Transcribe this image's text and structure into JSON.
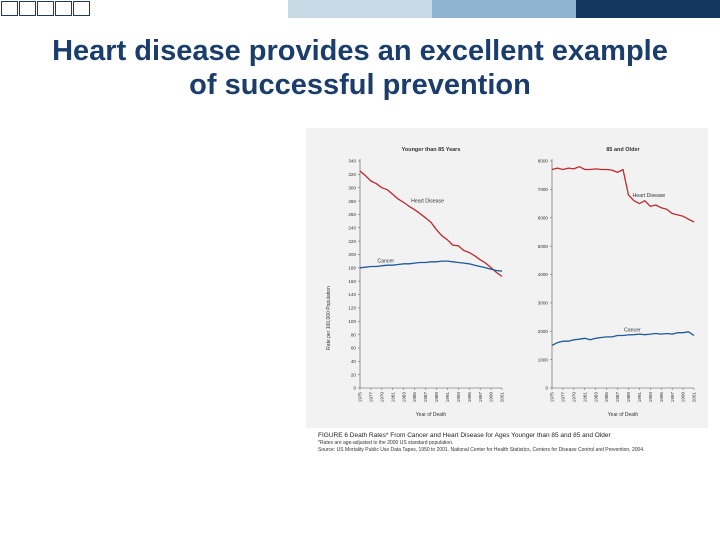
{
  "slide": {
    "title_line1": "Heart disease provides an excellent example",
    "title_line2": "of successful prevention",
    "bar_colors": [
      "#ffffff",
      "#c8d9e6",
      "#8db3d1",
      "#13375f"
    ]
  },
  "figure": {
    "caption_main": "FIGURE 6   Death Rates* From Cancer and Heart Disease for Ages Younger than 85 and 85 and Older",
    "caption_note1": "*Rates are age-adjusted to the 2000 US standard population.",
    "caption_note2": "Source: US Mortality Public Use Data Tapes, 1950 to 2001. National Center for Health Statistics, Centers for Disease Control and Prevention, 2004.",
    "ylabel": "Rate per 100,000 Population"
  },
  "chart_data": [
    {
      "type": "line",
      "title": "Younger than 85 Years",
      "xlabel": "Year of Death",
      "ylabel": "Rate per 100,000 Population",
      "xlim": [
        1975,
        2001
      ],
      "ylim": [
        0,
        340
      ],
      "yticks": [
        0,
        20,
        40,
        60,
        80,
        100,
        120,
        140,
        160,
        180,
        200,
        220,
        240,
        260,
        280,
        300,
        320,
        340
      ],
      "xticks": [
        "1975",
        "1977",
        "1979",
        "1981",
        "1983",
        "1985",
        "1987",
        "1989",
        "1991",
        "1993",
        "1995",
        "1997",
        "1999",
        "2001"
      ],
      "series": [
        {
          "name": "Heart Disease",
          "color": "#c0282d",
          "x": [
            1975,
            1976,
            1977,
            1978,
            1979,
            1980,
            1981,
            1982,
            1983,
            1984,
            1985,
            1986,
            1987,
            1988,
            1989,
            1990,
            1991,
            1992,
            1993,
            1994,
            1995,
            1996,
            1997,
            1998,
            1999,
            2000,
            2001
          ],
          "y": [
            325,
            318,
            310,
            306,
            300,
            297,
            290,
            283,
            278,
            272,
            267,
            261,
            255,
            248,
            237,
            228,
            222,
            214,
            213,
            206,
            203,
            198,
            192,
            187,
            180,
            173,
            167
          ]
        },
        {
          "name": "Cancer",
          "color": "#1f5a99",
          "x": [
            1975,
            1976,
            1977,
            1978,
            1979,
            1980,
            1981,
            1982,
            1983,
            1984,
            1985,
            1986,
            1987,
            1988,
            1989,
            1990,
            1991,
            1992,
            1993,
            1994,
            1995,
            1996,
            1997,
            1998,
            1999,
            2000,
            2001
          ],
          "y": [
            180,
            181,
            182,
            182,
            183,
            184,
            184,
            185,
            186,
            186,
            187,
            188,
            188,
            189,
            189,
            190,
            190,
            189,
            188,
            187,
            186,
            184,
            182,
            180,
            178,
            176,
            175
          ]
        }
      ],
      "annotations": [
        "Heart Disease",
        "Cancer"
      ]
    },
    {
      "type": "line",
      "title": "85 and Older",
      "xlabel": "Year of Death",
      "ylabel": "",
      "xlim": [
        1975,
        2001
      ],
      "ylim": [
        0,
        8000
      ],
      "yticks": [
        0,
        1000,
        2000,
        3000,
        4000,
        5000,
        6000,
        7000,
        8000
      ],
      "xticks": [
        "1975",
        "1977",
        "1979",
        "1981",
        "1983",
        "1985",
        "1987",
        "1989",
        "1991",
        "1993",
        "1995",
        "1997",
        "1999",
        "2001"
      ],
      "series": [
        {
          "name": "Heart Disease",
          "color": "#c0282d",
          "x": [
            1975,
            1976,
            1977,
            1978,
            1979,
            1980,
            1981,
            1982,
            1983,
            1984,
            1985,
            1986,
            1987,
            1988,
            1989,
            1990,
            1991,
            1992,
            1993,
            1994,
            1995,
            1996,
            1997,
            1998,
            1999,
            2000,
            2001
          ],
          "y": [
            7700,
            7750,
            7700,
            7750,
            7720,
            7800,
            7700,
            7700,
            7720,
            7700,
            7700,
            7680,
            7600,
            7700,
            6800,
            6600,
            6500,
            6600,
            6400,
            6450,
            6350,
            6300,
            6150,
            6100,
            6050,
            5950,
            5850
          ]
        },
        {
          "name": "Cancer",
          "color": "#1f5a99",
          "x": [
            1975,
            1976,
            1977,
            1978,
            1979,
            1980,
            1981,
            1982,
            1983,
            1984,
            1985,
            1986,
            1987,
            1988,
            1989,
            1990,
            1991,
            1992,
            1993,
            1994,
            1995,
            1996,
            1997,
            1998,
            1999,
            2000,
            2001
          ],
          "y": [
            1500,
            1600,
            1650,
            1650,
            1700,
            1720,
            1750,
            1700,
            1750,
            1780,
            1800,
            1800,
            1850,
            1850,
            1870,
            1880,
            1900,
            1880,
            1900,
            1920,
            1900,
            1920,
            1900,
            1950,
            1950,
            1980,
            1850
          ]
        }
      ],
      "annotations": [
        "Heart Disease",
        "Cancer"
      ]
    }
  ]
}
